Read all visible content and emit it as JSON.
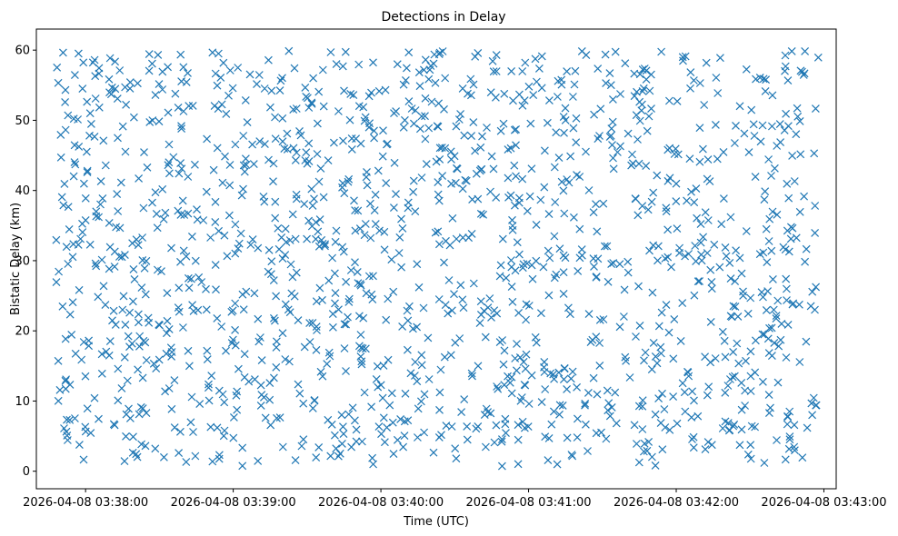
{
  "chart_data": {
    "type": "scatter",
    "title": "Detections in Delay",
    "xlabel": "Time (UTC)",
    "ylabel": "Bistatic Delay (km)",
    "x_ticks": [
      "2026-04-08 03:38:00",
      "2026-04-08 03:39:00",
      "2026-04-08 03:40:00",
      "2026-04-08 03:41:00",
      "2026-04-08 03:42:00",
      "2026-04-08 03:43:00"
    ],
    "x_range": [
      "2026-04-08 03:37:40",
      "2026-04-08 03:43:05"
    ],
    "y_ticks": [
      0,
      10,
      20,
      30,
      40,
      50,
      60
    ],
    "ylim": [
      -2.5,
      63
    ],
    "marker": "x",
    "color": "#1f77b4",
    "grid": false,
    "x_data_extent": [
      "2026-04-08 03:37:48",
      "2026-04-08 03:42:58"
    ],
    "y_data_extent": [
      0.7,
      59.9
    ],
    "approx_point_count": 1500,
    "note_points": "Points appear uniformly scattered across the time and delay extents; positions generated pseudo-randomly."
  }
}
